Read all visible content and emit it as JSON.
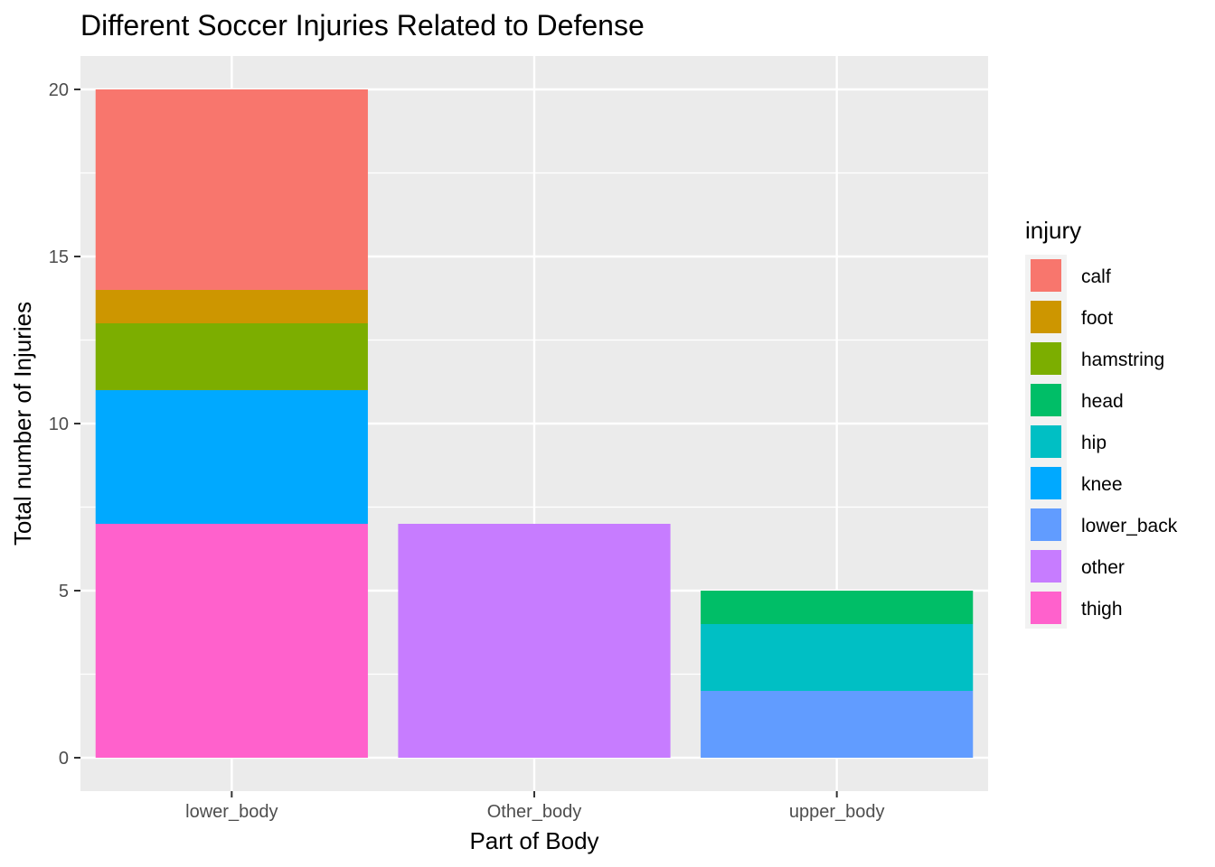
{
  "chart_data": {
    "type": "bar",
    "stacked": true,
    "title": "Different Soccer Injuries Related to Defense",
    "xlabel": "Part of Body",
    "ylabel": "Total number of Injuries",
    "ylim": [
      -1,
      21
    ],
    "yticks": [
      0,
      5,
      10,
      15,
      20
    ],
    "grid": true,
    "legend_placement": "right",
    "categories": [
      "lower_body",
      "Other_body",
      "upper_body"
    ],
    "legend": {
      "title": "injury",
      "entries": [
        {
          "name": "calf",
          "color": "#F8766D"
        },
        {
          "name": "foot",
          "color": "#CD9600"
        },
        {
          "name": "hamstring",
          "color": "#7CAE00"
        },
        {
          "name": "head",
          "color": "#00BE67"
        },
        {
          "name": "hip",
          "color": "#00BFC4"
        },
        {
          "name": "knee",
          "color": "#00A9FF"
        },
        {
          "name": "lower_back",
          "color": "#619CFF"
        },
        {
          "name": "other",
          "color": "#C77CFF"
        },
        {
          "name": "thigh",
          "color": "#FF61CC"
        }
      ]
    },
    "series": [
      {
        "name": "calf",
        "color": "#F8766D",
        "values": [
          6,
          0,
          0
        ]
      },
      {
        "name": "foot",
        "color": "#CD9600",
        "values": [
          1,
          0,
          0
        ]
      },
      {
        "name": "hamstring",
        "color": "#7CAE00",
        "values": [
          2,
          0,
          0
        ]
      },
      {
        "name": "head",
        "color": "#00BE67",
        "values": [
          0,
          0,
          1
        ]
      },
      {
        "name": "hip",
        "color": "#00BFC4",
        "values": [
          0,
          0,
          2
        ]
      },
      {
        "name": "knee",
        "color": "#00A9FF",
        "values": [
          4,
          0,
          0
        ]
      },
      {
        "name": "lower_back",
        "color": "#619CFF",
        "values": [
          0,
          0,
          2
        ]
      },
      {
        "name": "other",
        "color": "#C77CFF",
        "values": [
          0,
          7,
          0
        ]
      },
      {
        "name": "thigh",
        "color": "#FF61CC",
        "values": [
          7,
          0,
          0
        ]
      }
    ]
  }
}
